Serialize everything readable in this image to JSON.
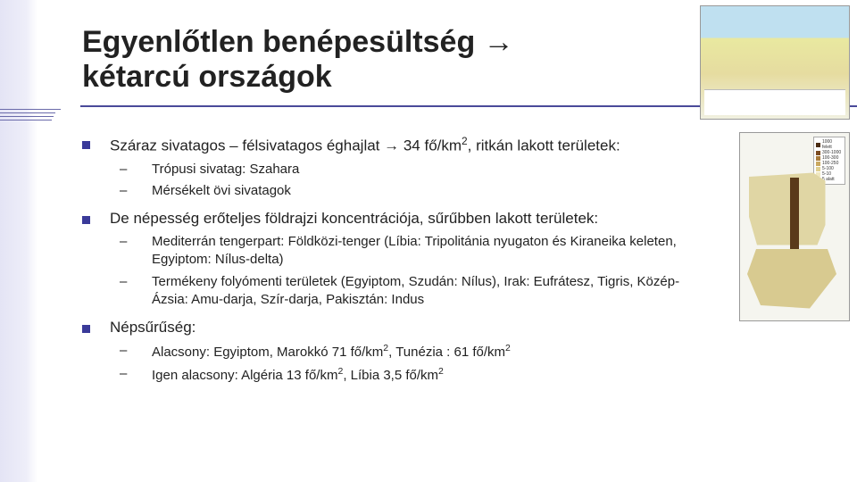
{
  "title_line1": "Egyenlőtlen benépesültség →",
  "title_line2": "kétarcú országok",
  "bullets": [
    {
      "text_pre": "Száraz sivatagos – félsivatagos éghajlat → 34 fő/km",
      "sup": "2",
      "text_post": ", ritkán lakott területek:",
      "subs": [
        {
          "text": "Trópusi sivatag: Szahara"
        },
        {
          "text": "Mérsékelt övi sivatagok"
        }
      ]
    },
    {
      "text_pre": "De népesség erőteljes földrajzi koncentrációja, sűrűbben lakott területek:",
      "sup": "",
      "text_post": "",
      "subs": [
        {
          "text": "Mediterrán tengerpart: Földközi-tenger (Líbia: Tripolitánia nyugaton és Kiraneika keleten, Egyiptom: Nílus-delta)"
        },
        {
          "text": "Termékeny folyómenti területek (Egyiptom, Szudán: Nílus), Irak: Eufrátesz, Tigris, Közép-Ázsia: Amu-darja, Szír-darja, Pakisztán: Indus"
        }
      ]
    },
    {
      "text_pre": "Népsűrűség:",
      "sup": "",
      "text_post": "",
      "subs": [
        {
          "html": "Alacsony: Egyiptom, Marokkó 71 fő/km<span class='sup'>2</span>, Tunézia : 61 fő/km<span class='sup'>2</span>"
        },
        {
          "html": "Igen alacsony: Algéria 13 fő/km<span class='sup'>2</span>, Líbia 3,5 fő/km<span class='sup'>2</span>"
        }
      ]
    }
  ],
  "map2_legend": [
    "1000 felett",
    "300-1000",
    "100-300",
    "100-250",
    "5-100",
    "5-10",
    "5 alatt"
  ],
  "map2_legend_colors": [
    "#4a2c12",
    "#7a4a20",
    "#a87a3a",
    "#c9a860",
    "#e0d090",
    "#f0e8c0",
    "#f8f8f0"
  ],
  "colors": {
    "accent": "#3a3a99",
    "stripe": "#e4e4f5"
  }
}
